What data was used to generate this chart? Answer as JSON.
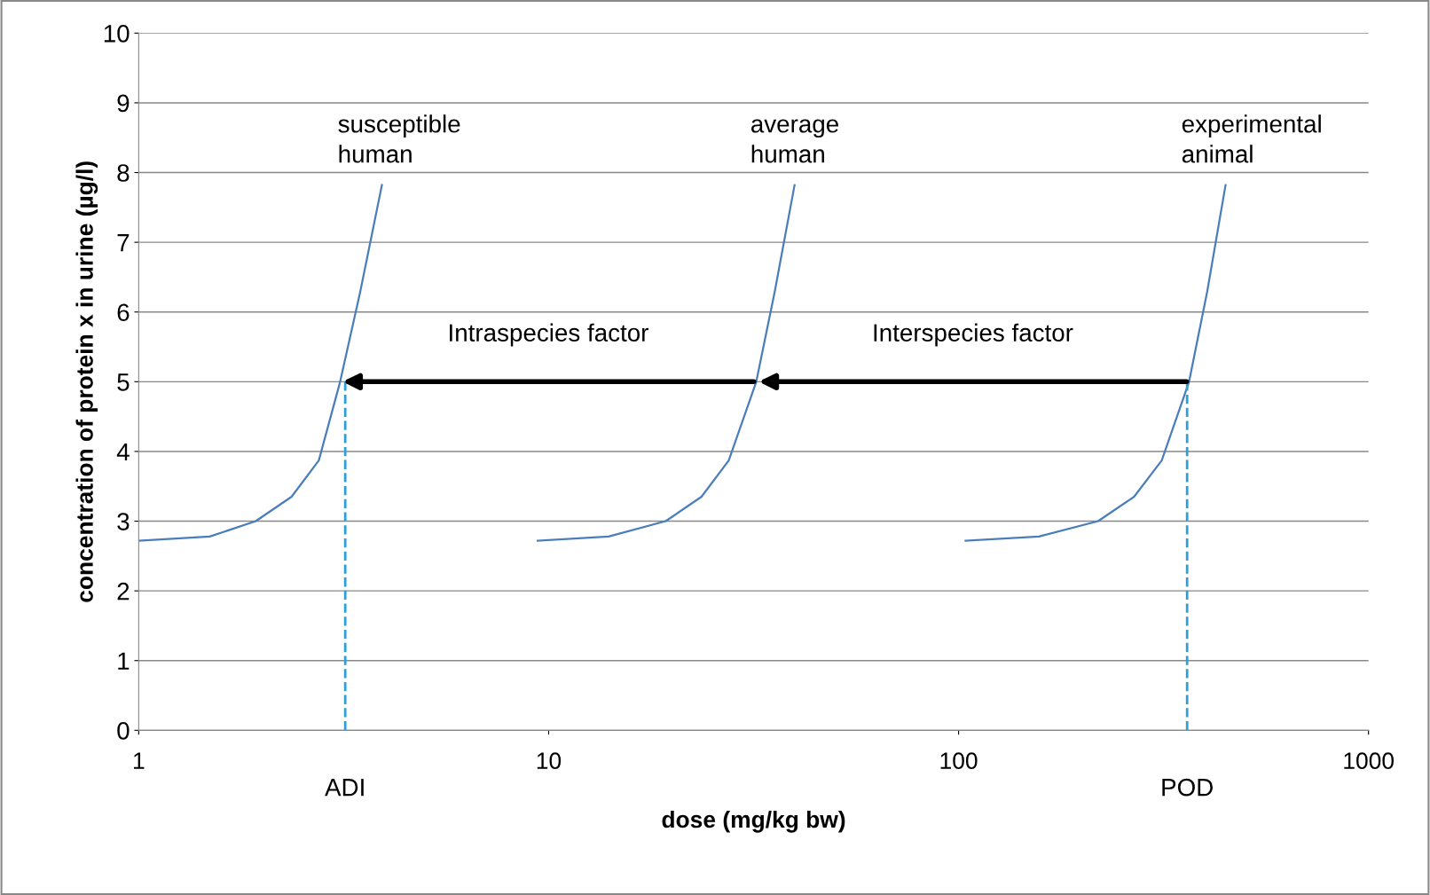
{
  "chart_data": {
    "type": "line",
    "xlabel": "dose (mg/kg bw)",
    "ylabel": "concentration of protein x in urine (µg/l)",
    "log": "x",
    "xlim": [
      1,
      1000
    ],
    "xticks": [
      1,
      10,
      100,
      1000
    ],
    "ylim": [
      0,
      10
    ],
    "yticks": [
      0,
      1,
      2,
      3,
      4,
      5,
      6,
      7,
      8,
      9,
      10
    ],
    "grid": "y",
    "legend": false,
    "marker": "none",
    "line_style": "solid",
    "series": [
      {
        "name": "susceptible\nhuman",
        "color": "#4a7ebb",
        "x": [
          1.0,
          1.49,
          1.93,
          2.36,
          2.75,
          3.1,
          3.47,
          3.92
        ],
        "values": [
          2.72,
          2.78,
          3.0,
          3.35,
          3.87,
          5,
          6.29,
          7.82
        ]
      },
      {
        "name": "average\nhuman",
        "color": "#4a7ebb",
        "x": [
          9.4,
          14.0,
          19.3,
          23.6,
          27.5,
          32.1,
          35.6,
          39.8
        ],
        "values": [
          2.72,
          2.78,
          3.0,
          3.35,
          3.87,
          5,
          6.29,
          7.82
        ]
      },
      {
        "name": "experimental\nanimal",
        "color": "#4a7ebb",
        "x": [
          104,
          157,
          219,
          268,
          313,
          365,
          404,
          448
        ],
        "values": [
          2.72,
          2.78,
          3.0,
          3.35,
          3.87,
          5,
          6.29,
          7.82
        ]
      }
    ],
    "ref_lines": [
      {
        "axis": "x",
        "value": 3.19,
        "label": "ADI",
        "color": "#2e9fd8",
        "line_style": "dashed"
      },
      {
        "axis": "x",
        "value": 361,
        "label": "POD",
        "color": "#2e9fd8",
        "line_style": "dashed"
      }
    ],
    "annotations": [
      "Intraspecies factor",
      "Interspecies factor"
    ]
  }
}
